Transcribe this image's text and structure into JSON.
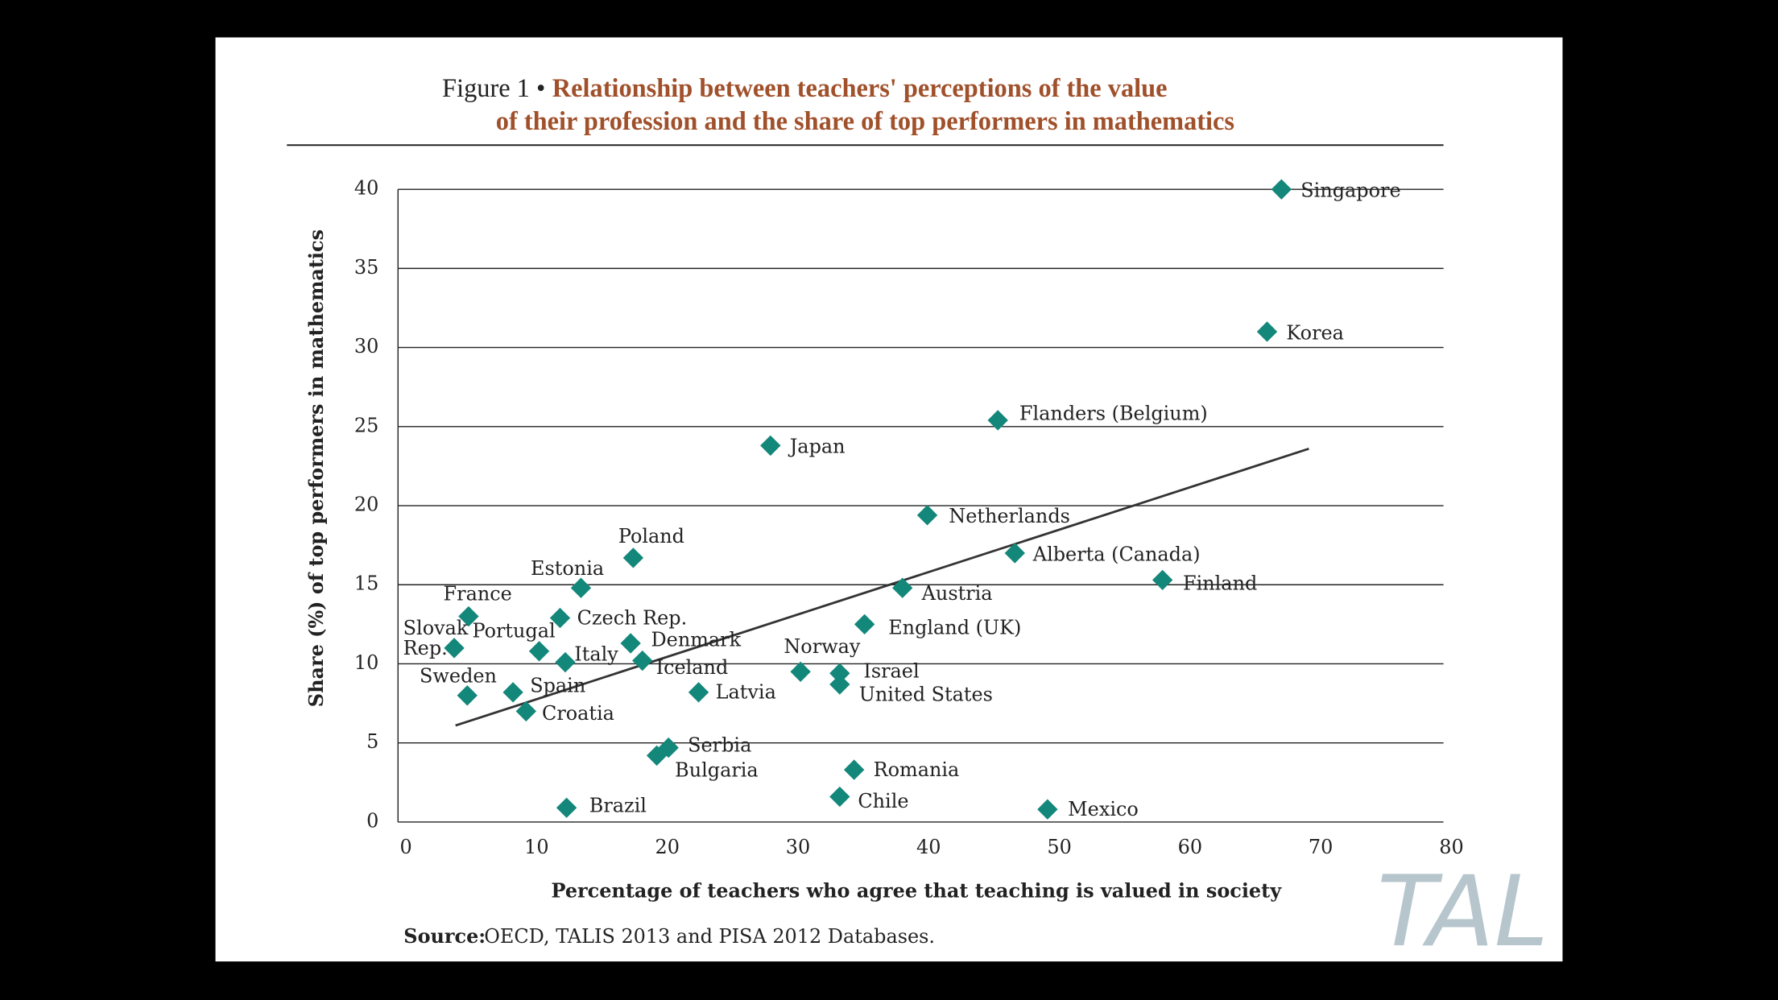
{
  "chart_data": {
    "type": "scatter",
    "title_prefix": "Figure 1 •",
    "title": [
      "Relationship between teachers' perceptions of the value",
      "of their profession and the share of top performers in mathematics"
    ],
    "x_label": "Percentage of teachers who agree that teaching is valued in society",
    "y_label": "Share (%) of top performers in mathematics",
    "source_label": "Source:",
    "source": "OECD, TALIS 2013 and PISA 2012 Databases.",
    "watermark": "TAL",
    "color": "#13877a",
    "xlim": [
      0,
      80
    ],
    "xticks": [
      0,
      10,
      20,
      30,
      40,
      50,
      60,
      70,
      80
    ],
    "ylim": [
      0,
      40
    ],
    "yticks": [
      0,
      5,
      10,
      15,
      20,
      25,
      30,
      35,
      40
    ],
    "grid": true,
    "point_labels": [
      "Singapore",
      "Korea",
      "Flanders (Belgium)",
      "Japan",
      "Netherlands",
      "Alberta (Canada)",
      "Finland",
      "Austria",
      "England (UK)",
      "Poland",
      "Estonia",
      "France",
      "Czech Rep.",
      "Slovak Rep.",
      "Portugal",
      "Italy",
      "Denmark",
      "Iceland",
      "Norway",
      "Israel",
      "United States",
      "Latvia",
      "Sweden",
      "Spain",
      "Croatia",
      "Serbia",
      "Bulgaria",
      "Romania",
      "Chile",
      "Brazil",
      "Mexico"
    ],
    "x": [
      67.6,
      66.5,
      45.9,
      28.5,
      40.5,
      47.2,
      58.5,
      38.6,
      35.7,
      18.0,
      14.0,
      5.4,
      12.4,
      4.3,
      10.8,
      12.8,
      17.8,
      18.7,
      30.8,
      33.8,
      33.8,
      23.0,
      5.3,
      8.8,
      9.8,
      20.7,
      19.8,
      34.9,
      33.8,
      12.9,
      49.7
    ],
    "values": [
      40,
      31.0,
      25.4,
      23.8,
      19.4,
      17.0,
      15.3,
      14.8,
      12.5,
      16.7,
      14.8,
      13.0,
      12.9,
      11.0,
      10.8,
      10.1,
      11.3,
      10.2,
      9.5,
      9.4,
      8.7,
      8.2,
      8.0,
      8.2,
      7.0,
      4.7,
      4.2,
      3.3,
      1.6,
      0.9,
      0.8
    ],
    "trendline": {
      "x": [
        4.4,
        69.7
      ],
      "values": [
        6.1,
        23.6
      ],
      "color": "#333333"
    }
  }
}
